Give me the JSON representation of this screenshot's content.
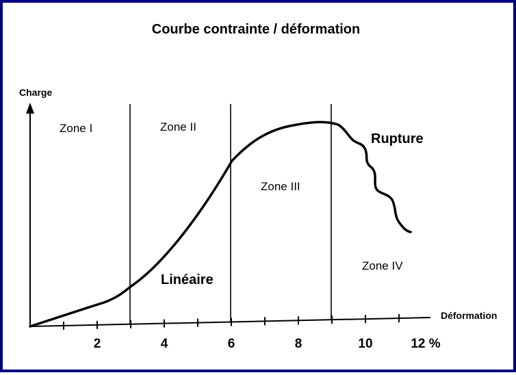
{
  "chart_data": {
    "type": "line",
    "title": "Courbe contrainte / déformation",
    "xlabel": "Déformation",
    "ylabel": "Charge",
    "xlim": [
      0,
      12.5
    ],
    "xticks": [
      1,
      2,
      3,
      4,
      5,
      6,
      7,
      8,
      9,
      10,
      11
    ],
    "xtick_labels": [
      {
        "x": 2,
        "label": "2"
      },
      {
        "x": 4,
        "label": "4"
      },
      {
        "x": 6,
        "label": "6"
      },
      {
        "x": 8,
        "label": "8"
      },
      {
        "x": 10,
        "label": "10"
      },
      {
        "x": 12,
        "label": "12 %"
      }
    ],
    "zone_boundaries": [
      3,
      6,
      9
    ],
    "zones": [
      {
        "label": "Zone I"
      },
      {
        "label": "Zone II"
      },
      {
        "label": "Zone III"
      },
      {
        "label": "Zone IV"
      }
    ],
    "annotations": [
      {
        "text": "Linéaire"
      },
      {
        "text": "Rupture"
      }
    ],
    "grid": false,
    "curve_color": "#000000",
    "frame_color": "#000080"
  }
}
